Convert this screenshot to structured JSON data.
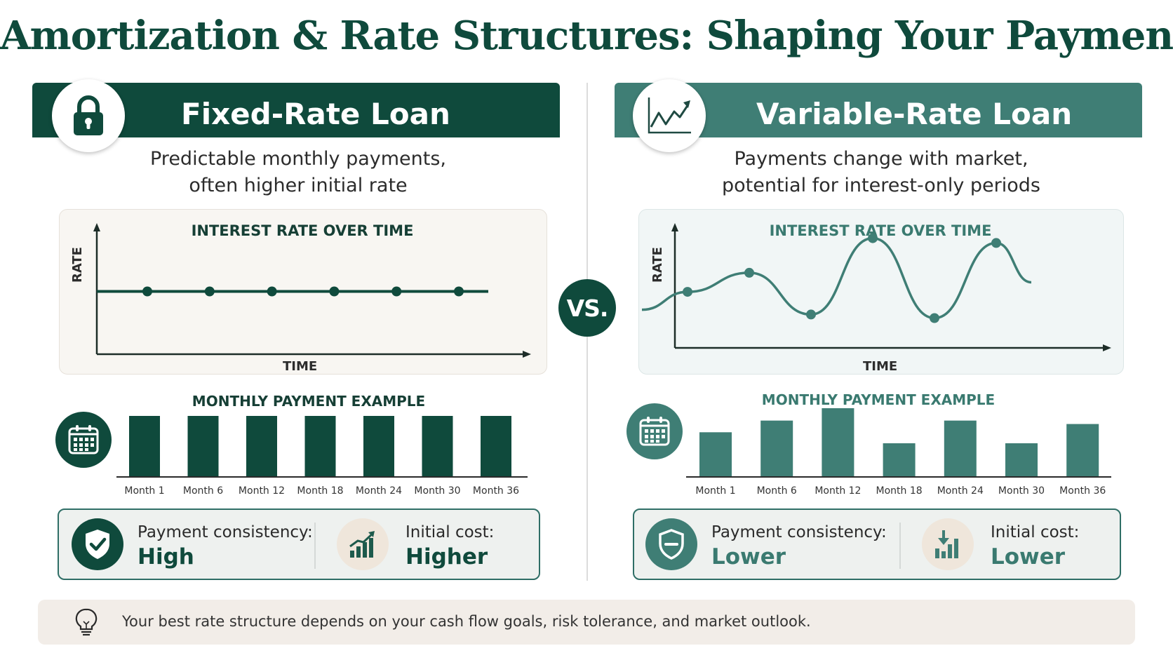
{
  "title": "Amortization & Rate Structures: Shaping Your Payments",
  "colors": {
    "fixed_primary": "#0f4a3c",
    "variable_primary": "#3f7e75",
    "variable_text": "#3a7a70",
    "fixed_chart_bg": "#f8f6f2",
    "variable_chart_bg": "#f1f6f6",
    "footer_bg": "#f2ede8",
    "stat_icon_tan": "#efe6db"
  },
  "fixed": {
    "title": "Fixed-Rate Loan",
    "icon": "lock-icon",
    "subtitle_line1": "Predictable monthly payments,",
    "subtitle_line2": "often higher initial rate",
    "chart_title": "INTEREST RATE OVER TIME",
    "y_axis_label": "RATE",
    "x_axis_label": "TIME",
    "payment_title": "MONTHLY PAYMENT EXAMPLE",
    "payment_icon": "calendar-icon",
    "stat1_icon": "shield-check-icon",
    "stat1_label": "Payment consistency:",
    "stat1_value": "High",
    "stat2_icon": "bar-chart-up-icon",
    "stat2_label": "Initial cost:",
    "stat2_value": "Higher"
  },
  "variable": {
    "title": "Variable-Rate Loan",
    "icon": "trend-line-icon",
    "subtitle_line1": "Payments change with market,",
    "subtitle_line2": "potential for interest-only periods",
    "chart_title": "INTEREST RATE OVER TIME",
    "y_axis_label": "RATE",
    "x_axis_label": "TIME",
    "payment_title": "MONTHLY PAYMENT EXAMPLE",
    "payment_icon": "calendar-icon",
    "stat1_icon": "shield-minus-icon",
    "stat1_label": "Payment consistency:",
    "stat1_value": "Lower",
    "stat2_icon": "bar-chart-down-icon",
    "stat2_label": "Initial cost:",
    "stat2_value": "Lower"
  },
  "vs_label": "VS.",
  "footer_text": "Your best rate structure depends on your cash flow goals, risk tolerance, and market outlook.",
  "footer_icon": "lightbulb-icon",
  "chart_data": [
    {
      "type": "line",
      "series": [
        {
          "values": [
            0.5,
            0.5,
            0.5,
            0.5,
            0.5,
            0.5
          ]
        }
      ]
    },
    {
      "type": "line",
      "series": [
        {
          "values": [
            0.47,
            0.63,
            0.28,
            0.92,
            0.25,
            0.88
          ]
        }
      ]
    },
    {
      "type": "bar",
      "categories": [
        "Month 1",
        "Month 6",
        "Month 12",
        "Month 18",
        "Month 24",
        "Month 30",
        "Month 36"
      ],
      "values": [
        1,
        1,
        1,
        1,
        1,
        1,
        1
      ]
    },
    {
      "type": "bar",
      "categories": [
        "Month 1",
        "Month 6",
        "Month 12",
        "Month 18",
        "Month 24",
        "Month 30",
        "Month 36"
      ],
      "values": [
        0.65,
        0.82,
        1.0,
        0.49,
        0.82,
        0.49,
        0.77
      ]
    }
  ]
}
